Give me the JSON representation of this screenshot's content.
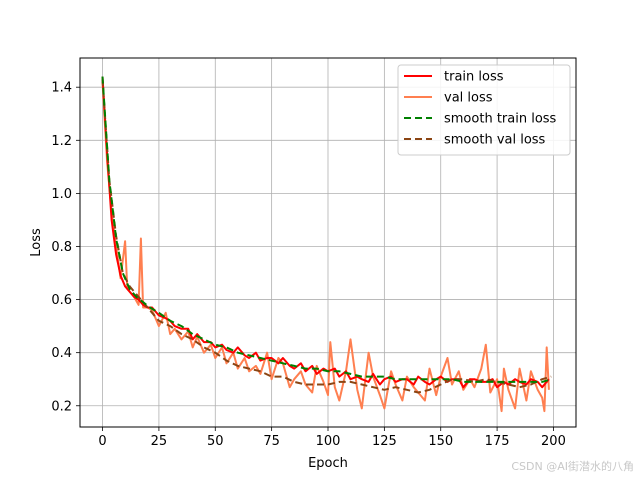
{
  "chart_data": {
    "type": "line",
    "xlabel": "Epoch",
    "ylabel": "Loss",
    "xlim": [
      -10,
      210
    ],
    "ylim": [
      0.12,
      1.51
    ],
    "xticks": [
      0,
      25,
      50,
      75,
      100,
      125,
      150,
      175,
      200
    ],
    "yticks": [
      0.2,
      0.4,
      0.6,
      0.8,
      1.0,
      1.2,
      1.4
    ],
    "xtick_labels": [
      "0",
      "25",
      "50",
      "75",
      "100",
      "125",
      "150",
      "175",
      "200"
    ],
    "ytick_labels": [
      "0.2",
      "0.4",
      "0.6",
      "0.8",
      "1.0",
      "1.2",
      "1.4"
    ],
    "grid": true,
    "legend_position": "top-right",
    "series": [
      {
        "name": "train loss",
        "color": "#ff0000",
        "style": "solid",
        "x": [
          0,
          2,
          4,
          6,
          8,
          10,
          12,
          14,
          16,
          18,
          20,
          22,
          25,
          28,
          30,
          32,
          35,
          38,
          40,
          42,
          45,
          48,
          50,
          53,
          55,
          58,
          60,
          63,
          65,
          68,
          70,
          73,
          75,
          78,
          80,
          83,
          85,
          88,
          90,
          93,
          95,
          98,
          100,
          103,
          105,
          108,
          110,
          113,
          115,
          118,
          120,
          123,
          125,
          128,
          130,
          133,
          135,
          138,
          140,
          143,
          145,
          148,
          150,
          153,
          155,
          158,
          160,
          163,
          165,
          168,
          170,
          173,
          175,
          178,
          180,
          183,
          185,
          188,
          190,
          193,
          195,
          198
        ],
        "y": [
          1.44,
          1.15,
          0.9,
          0.77,
          0.69,
          0.65,
          0.63,
          0.61,
          0.6,
          0.58,
          0.57,
          0.57,
          0.54,
          0.53,
          0.52,
          0.5,
          0.49,
          0.49,
          0.45,
          0.47,
          0.44,
          0.44,
          0.42,
          0.43,
          0.41,
          0.4,
          0.42,
          0.39,
          0.38,
          0.4,
          0.37,
          0.38,
          0.38,
          0.36,
          0.38,
          0.35,
          0.34,
          0.36,
          0.33,
          0.35,
          0.32,
          0.34,
          0.33,
          0.34,
          0.31,
          0.33,
          0.3,
          0.31,
          0.3,
          0.29,
          0.32,
          0.28,
          0.3,
          0.31,
          0.29,
          0.3,
          0.3,
          0.28,
          0.31,
          0.29,
          0.28,
          0.3,
          0.31,
          0.29,
          0.3,
          0.3,
          0.27,
          0.3,
          0.3,
          0.29,
          0.29,
          0.3,
          0.27,
          0.29,
          0.28,
          0.3,
          0.29,
          0.28,
          0.3,
          0.29,
          0.27,
          0.3
        ]
      },
      {
        "name": "val loss",
        "color": "#ff7f50",
        "style": "solid",
        "x": [
          0,
          2,
          4,
          6,
          8,
          10,
          11,
          12,
          14,
          16,
          17,
          18,
          20,
          22,
          25,
          28,
          30,
          32,
          35,
          38,
          40,
          42,
          45,
          48,
          50,
          53,
          55,
          58,
          60,
          63,
          65,
          68,
          70,
          73,
          75,
          78,
          80,
          83,
          85,
          88,
          90,
          93,
          95,
          98,
          100,
          101,
          103,
          105,
          108,
          110,
          113,
          115,
          118,
          120,
          123,
          125,
          128,
          130,
          133,
          135,
          138,
          140,
          143,
          145,
          148,
          150,
          153,
          155,
          158,
          160,
          163,
          165,
          168,
          170,
          172,
          175,
          177,
          178,
          180,
          183,
          185,
          188,
          190,
          193,
          195,
          196,
          197,
          198
        ],
        "y": [
          1.42,
          1.12,
          0.93,
          0.8,
          0.68,
          0.82,
          0.64,
          0.63,
          0.61,
          0.58,
          0.83,
          0.57,
          0.57,
          0.56,
          0.5,
          0.55,
          0.47,
          0.49,
          0.45,
          0.48,
          0.42,
          0.46,
          0.4,
          0.43,
          0.38,
          0.42,
          0.36,
          0.4,
          0.34,
          0.38,
          0.33,
          0.35,
          0.32,
          0.4,
          0.3,
          0.38,
          0.36,
          0.27,
          0.3,
          0.33,
          0.28,
          0.25,
          0.35,
          0.29,
          0.24,
          0.44,
          0.27,
          0.22,
          0.33,
          0.45,
          0.26,
          0.19,
          0.4,
          0.31,
          0.24,
          0.19,
          0.33,
          0.28,
          0.22,
          0.31,
          0.27,
          0.25,
          0.22,
          0.34,
          0.24,
          0.31,
          0.38,
          0.28,
          0.33,
          0.26,
          0.3,
          0.27,
          0.34,
          0.43,
          0.25,
          0.3,
          0.18,
          0.34,
          0.26,
          0.19,
          0.34,
          0.22,
          0.33,
          0.26,
          0.23,
          0.18,
          0.42,
          0.26
        ]
      },
      {
        "name": "smooth train loss",
        "color": "#008000",
        "style": "dashed",
        "x": [
          0,
          3,
          6,
          9,
          12,
          15,
          18,
          21,
          25,
          30,
          35,
          40,
          45,
          50,
          55,
          60,
          65,
          70,
          75,
          80,
          85,
          90,
          95,
          100,
          105,
          110,
          115,
          120,
          125,
          130,
          135,
          140,
          145,
          150,
          155,
          160,
          165,
          170,
          175,
          180,
          185,
          190,
          195,
          199
        ],
        "y": [
          1.44,
          1.05,
          0.83,
          0.7,
          0.64,
          0.61,
          0.59,
          0.57,
          0.55,
          0.52,
          0.5,
          0.47,
          0.45,
          0.43,
          0.42,
          0.4,
          0.39,
          0.38,
          0.37,
          0.36,
          0.35,
          0.34,
          0.34,
          0.33,
          0.33,
          0.32,
          0.31,
          0.31,
          0.31,
          0.3,
          0.3,
          0.3,
          0.3,
          0.3,
          0.3,
          0.29,
          0.29,
          0.29,
          0.29,
          0.29,
          0.29,
          0.29,
          0.29,
          0.3
        ]
      },
      {
        "name": "smooth val loss",
        "color": "#8b4513",
        "style": "dashed",
        "x": [
          0,
          3,
          6,
          9,
          12,
          15,
          18,
          21,
          25,
          30,
          35,
          40,
          45,
          50,
          55,
          60,
          65,
          70,
          75,
          80,
          85,
          90,
          95,
          100,
          105,
          110,
          115,
          120,
          125,
          130,
          135,
          140,
          145,
          150,
          155,
          160,
          165,
          170,
          175,
          180,
          185,
          190,
          195,
          199
        ],
        "y": [
          1.43,
          1.05,
          0.84,
          0.7,
          0.65,
          0.62,
          0.59,
          0.56,
          0.52,
          0.5,
          0.47,
          0.45,
          0.42,
          0.4,
          0.37,
          0.35,
          0.34,
          0.33,
          0.31,
          0.31,
          0.29,
          0.28,
          0.28,
          0.28,
          0.29,
          0.29,
          0.28,
          0.27,
          0.26,
          0.27,
          0.26,
          0.25,
          0.26,
          0.28,
          0.3,
          0.3,
          0.29,
          0.3,
          0.29,
          0.28,
          0.27,
          0.28,
          0.3,
          0.31
        ]
      }
    ]
  },
  "watermark": "CSDN @AI街潜水的八角"
}
